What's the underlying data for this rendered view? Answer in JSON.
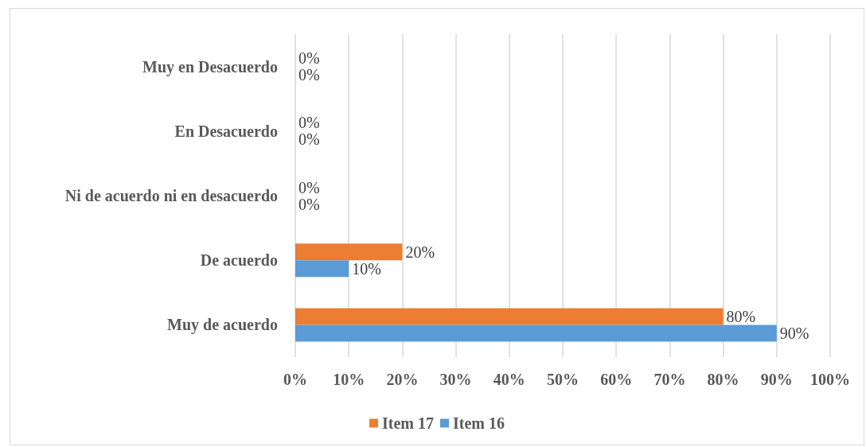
{
  "chart_data": {
    "type": "bar",
    "orientation": "horizontal",
    "categories": [
      "Muy en Desacuerdo",
      "En Desacuerdo",
      "Ni de acuerdo ni en desacuerdo",
      "De acuerdo",
      "Muy de acuerdo"
    ],
    "series": [
      {
        "name": "Item 17",
        "color": "#ed7d31",
        "values": [
          0,
          0,
          0,
          20,
          80
        ],
        "value_labels": [
          "0%",
          "0%",
          "0%",
          "20%",
          "80%"
        ]
      },
      {
        "name": "Item 16",
        "color": "#5b9bd5",
        "values": [
          0,
          0,
          0,
          10,
          90
        ],
        "value_labels": [
          "0%",
          "0%",
          "0%",
          "10%",
          "90%"
        ]
      }
    ],
    "xlim": [
      0,
      100
    ],
    "xticks": [
      {
        "value": 0,
        "label": "0%"
      },
      {
        "value": 10,
        "label": "10%"
      },
      {
        "value": 20,
        "label": "20%"
      },
      {
        "value": 30,
        "label": "30%"
      },
      {
        "value": 40,
        "label": "40%"
      },
      {
        "value": 50,
        "label": "50%"
      },
      {
        "value": 60,
        "label": "60%"
      },
      {
        "value": 70,
        "label": "70%"
      },
      {
        "value": 80,
        "label": "80%"
      },
      {
        "value": 90,
        "label": "90%"
      },
      {
        "value": 100,
        "label": "100%"
      }
    ],
    "grid": "x",
    "legend": "bottom"
  }
}
